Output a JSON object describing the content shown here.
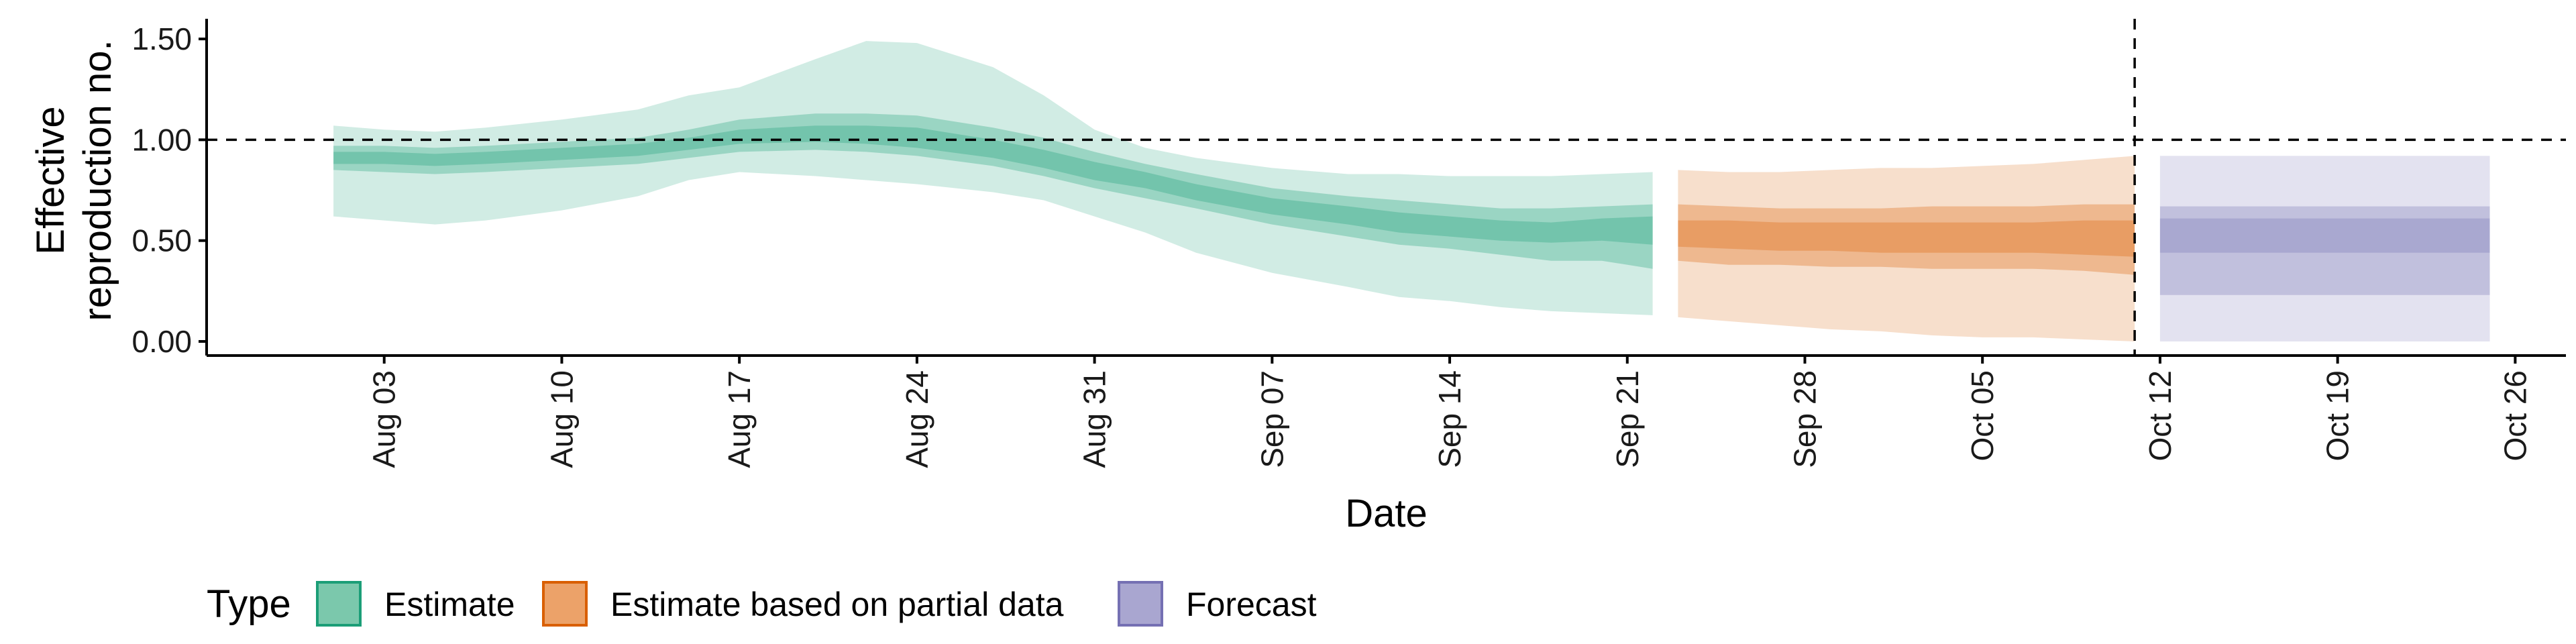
{
  "chart_data": {
    "type": "area",
    "xlabel": "Date",
    "ylabel_lines": [
      "Effective",
      "reproduction no."
    ],
    "y_ticks": [
      "0.00",
      "0.50",
      "1.00",
      "1.50"
    ],
    "y_tick_values": [
      0,
      0.5,
      1,
      1.5
    ],
    "ylim": [
      -0.07,
      1.6
    ],
    "xlim": [
      "2020-07-27",
      "2020-10-28"
    ],
    "x_ticks": [
      {
        "date": "2020-08-03",
        "label": "Aug 03"
      },
      {
        "date": "2020-08-10",
        "label": "Aug 10"
      },
      {
        "date": "2020-08-17",
        "label": "Aug 17"
      },
      {
        "date": "2020-08-24",
        "label": "Aug 24"
      },
      {
        "date": "2020-08-31",
        "label": "Aug 31"
      },
      {
        "date": "2020-09-07",
        "label": "Sep 07"
      },
      {
        "date": "2020-09-14",
        "label": "Sep 14"
      },
      {
        "date": "2020-09-21",
        "label": "Sep 21"
      },
      {
        "date": "2020-09-28",
        "label": "Sep 28"
      },
      {
        "date": "2020-10-05",
        "label": "Oct 05"
      },
      {
        "date": "2020-10-12",
        "label": "Oct 12"
      },
      {
        "date": "2020-10-19",
        "label": "Oct 19"
      },
      {
        "date": "2020-10-26",
        "label": "Oct 26"
      }
    ],
    "reference_hline": 1.0,
    "reference_vline": "2020-10-11",
    "legend": {
      "title": "Type",
      "position": "bottom",
      "entries": [
        {
          "label": "Estimate",
          "fill": "#7bc8ac",
          "stroke": "#1b9e77"
        },
        {
          "label": "Estimate based on partial data",
          "fill": "#eca269",
          "stroke": "#d95f02"
        },
        {
          "label": "Forecast",
          "fill": "#a9a6d0",
          "stroke": "#7570b3"
        }
      ]
    },
    "series": [
      {
        "name": "Estimate",
        "color": "#1b9e77",
        "x": [
          "2020-08-01",
          "2020-08-03",
          "2020-08-05",
          "2020-08-07",
          "2020-08-10",
          "2020-08-13",
          "2020-08-15",
          "2020-08-17",
          "2020-08-20",
          "2020-08-22",
          "2020-08-24",
          "2020-08-27",
          "2020-08-29",
          "2020-08-31",
          "2020-09-02",
          "2020-09-04",
          "2020-09-07",
          "2020-09-10",
          "2020-09-12",
          "2020-09-14",
          "2020-09-16",
          "2020-09-18",
          "2020-09-20",
          "2020-09-22"
        ],
        "lower90": [
          0.62,
          0.6,
          0.58,
          0.6,
          0.65,
          0.72,
          0.8,
          0.84,
          0.82,
          0.8,
          0.78,
          0.74,
          0.7,
          0.62,
          0.54,
          0.44,
          0.34,
          0.27,
          0.22,
          0.2,
          0.17,
          0.15,
          0.14,
          0.13
        ],
        "upper90": [
          1.07,
          1.05,
          1.04,
          1.06,
          1.1,
          1.15,
          1.22,
          1.26,
          1.4,
          1.49,
          1.48,
          1.36,
          1.22,
          1.05,
          0.96,
          0.91,
          0.86,
          0.83,
          0.83,
          0.82,
          0.82,
          0.82,
          0.83,
          0.84
        ],
        "lower50": [
          0.85,
          0.84,
          0.83,
          0.84,
          0.86,
          0.88,
          0.91,
          0.94,
          0.95,
          0.94,
          0.92,
          0.87,
          0.82,
          0.76,
          0.71,
          0.66,
          0.58,
          0.52,
          0.48,
          0.46,
          0.43,
          0.4,
          0.4,
          0.36
        ],
        "upper50": [
          0.97,
          0.97,
          0.96,
          0.97,
          0.99,
          1.01,
          1.05,
          1.1,
          1.13,
          1.13,
          1.12,
          1.06,
          1.01,
          0.94,
          0.88,
          0.83,
          0.76,
          0.72,
          0.7,
          0.68,
          0.66,
          0.66,
          0.67,
          0.68
        ],
        "lower20": [
          0.88,
          0.88,
          0.87,
          0.88,
          0.9,
          0.92,
          0.95,
          0.98,
          0.99,
          0.98,
          0.96,
          0.91,
          0.86,
          0.8,
          0.76,
          0.7,
          0.63,
          0.58,
          0.54,
          0.52,
          0.5,
          0.49,
          0.5,
          0.48
        ],
        "upper20": [
          0.94,
          0.94,
          0.93,
          0.94,
          0.96,
          0.98,
          1.01,
          1.05,
          1.07,
          1.07,
          1.06,
          1.0,
          0.95,
          0.89,
          0.84,
          0.78,
          0.71,
          0.67,
          0.64,
          0.62,
          0.6,
          0.59,
          0.61,
          0.62
        ]
      },
      {
        "name": "Estimate based on partial data",
        "color": "#d95f02",
        "x": [
          "2020-09-23",
          "2020-09-25",
          "2020-09-27",
          "2020-09-29",
          "2020-10-01",
          "2020-10-03",
          "2020-10-05",
          "2020-10-07",
          "2020-10-09",
          "2020-10-11"
        ],
        "lower90": [
          0.12,
          0.1,
          0.08,
          0.06,
          0.05,
          0.03,
          0.02,
          0.02,
          0.01,
          0.0
        ],
        "upper90": [
          0.85,
          0.84,
          0.84,
          0.85,
          0.86,
          0.86,
          0.87,
          0.88,
          0.9,
          0.92
        ],
        "lower50": [
          0.4,
          0.38,
          0.38,
          0.37,
          0.37,
          0.36,
          0.36,
          0.36,
          0.35,
          0.33
        ],
        "upper50": [
          0.68,
          0.67,
          0.66,
          0.66,
          0.66,
          0.67,
          0.67,
          0.67,
          0.68,
          0.68
        ],
        "lower20": [
          0.47,
          0.46,
          0.45,
          0.45,
          0.44,
          0.44,
          0.44,
          0.44,
          0.43,
          0.42
        ],
        "upper20": [
          0.6,
          0.6,
          0.59,
          0.59,
          0.59,
          0.59,
          0.59,
          0.59,
          0.6,
          0.6
        ]
      },
      {
        "name": "Forecast",
        "color": "#7570b3",
        "x": [
          "2020-10-12",
          "2020-10-25"
        ],
        "lower90": [
          0.0,
          0.0
        ],
        "upper90": [
          0.92,
          0.92
        ],
        "lower50": [
          0.23,
          0.23
        ],
        "upper50": [
          0.67,
          0.67
        ],
        "lower20": [
          0.44,
          0.44
        ],
        "upper20": [
          0.61,
          0.61
        ]
      }
    ]
  }
}
